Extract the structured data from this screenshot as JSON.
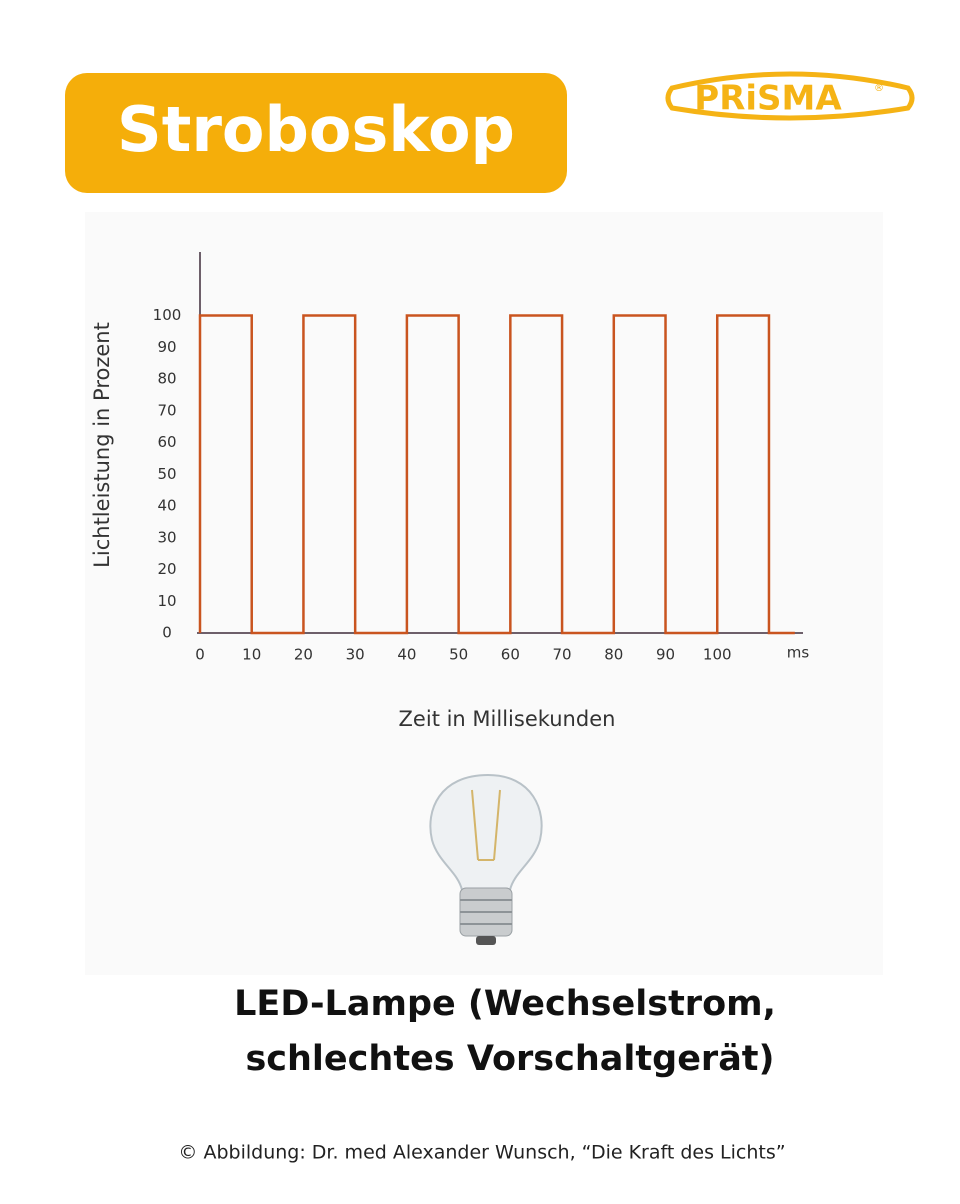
{
  "header": {
    "title": "Stroboskop",
    "logo": "PRiSMA",
    "logo_mark": "®"
  },
  "chart_data": {
    "type": "line",
    "ylabel": "Lichtleistung in Prozent",
    "xlabel": "Zeit in Millisekunden",
    "x_unit": "ms",
    "x": [
      0,
      0,
      10,
      10,
      20,
      20,
      30,
      30,
      40,
      40,
      50,
      50,
      60,
      60,
      70,
      70,
      80,
      80,
      90,
      90,
      100,
      100,
      110,
      110,
      115
    ],
    "series": [
      {
        "color": "#c9541f",
        "values": [
          0,
          100,
          100,
          0,
          0,
          100,
          100,
          0,
          0,
          100,
          100,
          0,
          0,
          100,
          100,
          0,
          0,
          100,
          100,
          0,
          0,
          100,
          100,
          0,
          0
        ]
      }
    ],
    "xlim": [
      0,
      116
    ],
    "ylim": [
      0,
      120
    ],
    "xticks": [
      0,
      10,
      20,
      30,
      40,
      50,
      60,
      70,
      80,
      90,
      100
    ],
    "yticks": [
      0,
      10,
      20,
      30,
      40,
      50,
      60,
      70,
      80,
      90,
      100
    ],
    "grid": false
  },
  "caption": {
    "line1": "LED-Lampe (Wechselstrom,",
    "line2": "schlechtes Vorschaltgerät)"
  },
  "credit": "© Abbildung: Dr. med Alexander Wunsch, “Die Kraft des Lichts”"
}
